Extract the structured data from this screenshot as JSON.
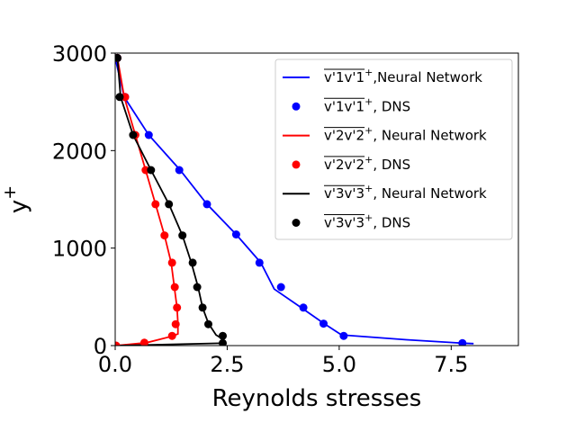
{
  "chart_data": {
    "type": "line",
    "title": "",
    "xlabel": "Reynolds stresses",
    "ylabel": "y+",
    "xlim": [
      0,
      9
    ],
    "ylim": [
      0,
      3000
    ],
    "xticks": [
      "0.0",
      "2.5",
      "5.0",
      "7.5"
    ],
    "xtick_values": [
      0,
      2.5,
      5.0,
      7.5
    ],
    "yticks": [
      "0",
      "1000",
      "2000",
      "3000"
    ],
    "ytick_values": [
      0,
      1000,
      2000,
      3000
    ],
    "grid": false,
    "legend_position": "top-right",
    "series": [
      {
        "name": "v'1v'1+, Neural Network",
        "legend_base": "v'1v'1",
        "legend_suffix": ",Neural Network",
        "kind": "line",
        "color": "#0000ff",
        "x": [
          0.0,
          0.2,
          0.75,
          1.45,
          2.05,
          2.7,
          3.25,
          3.55,
          4.15,
          4.65,
          5.05,
          6.5,
          7.75,
          8.0
        ],
        "y": [
          2950,
          2550,
          2160,
          1800,
          1450,
          1140,
          850,
          580,
          390,
          230,
          110,
          60,
          25,
          20
        ]
      },
      {
        "name": "v'1v'1+, DNS",
        "legend_base": "v'1v'1",
        "legend_suffix": ", DNS",
        "kind": "scatter",
        "color": "#0000ff",
        "x": [
          0.05,
          0.22,
          0.75,
          1.43,
          2.05,
          2.7,
          3.22,
          3.7,
          4.2,
          4.65,
          5.1,
          7.75
        ],
        "y": [
          2950,
          2550,
          2160,
          1800,
          1450,
          1140,
          850,
          600,
          390,
          225,
          100,
          25
        ]
      },
      {
        "name": "v'2v'2+, Neural Network",
        "legend_base": "v'2v'2",
        "legend_suffix": ", Neural Network",
        "kind": "line",
        "color": "#ff0000",
        "x": [
          0.05,
          0.2,
          0.45,
          0.68,
          0.9,
          1.1,
          1.25,
          1.32,
          1.38,
          1.4,
          1.4,
          1.3,
          0.7,
          0.02
        ],
        "y": [
          2950,
          2550,
          2160,
          1800,
          1450,
          1130,
          850,
          600,
          390,
          230,
          120,
          100,
          30,
          0
        ]
      },
      {
        "name": "v'2v'2+, DNS",
        "legend_base": "v'2v'2",
        "legend_suffix": ", DNS",
        "kind": "scatter",
        "color": "#ff0000",
        "x": [
          0.05,
          0.22,
          0.45,
          0.68,
          0.9,
          1.1,
          1.27,
          1.33,
          1.38,
          1.35,
          1.27,
          0.65,
          0.02
        ],
        "y": [
          2950,
          2550,
          2160,
          1800,
          1450,
          1130,
          850,
          600,
          390,
          220,
          100,
          30,
          0
        ]
      },
      {
        "name": "v'3v'3+, Neural Network",
        "legend_base": "v'3v'3",
        "legend_suffix": ", Neural Network",
        "kind": "line",
        "color": "#000000",
        "x": [
          0.05,
          0.12,
          0.4,
          0.8,
          1.2,
          1.5,
          1.7,
          1.85,
          1.95,
          2.08,
          2.25,
          2.42,
          2.45,
          0.05
        ],
        "y": [
          2950,
          2550,
          2160,
          1800,
          1450,
          1130,
          850,
          600,
          390,
          230,
          110,
          60,
          25,
          0
        ]
      },
      {
        "name": "v'3v'3+, DNS",
        "legend_base": "v'3v'3",
        "legend_suffix": ", DNS",
        "kind": "scatter",
        "color": "#000000",
        "x": [
          0.05,
          0.1,
          0.4,
          0.8,
          1.2,
          1.5,
          1.73,
          1.83,
          1.95,
          2.08,
          2.4,
          2.4
        ],
        "y": [
          2950,
          2550,
          2160,
          1800,
          1450,
          1130,
          850,
          600,
          390,
          220,
          100,
          25
        ]
      }
    ]
  }
}
